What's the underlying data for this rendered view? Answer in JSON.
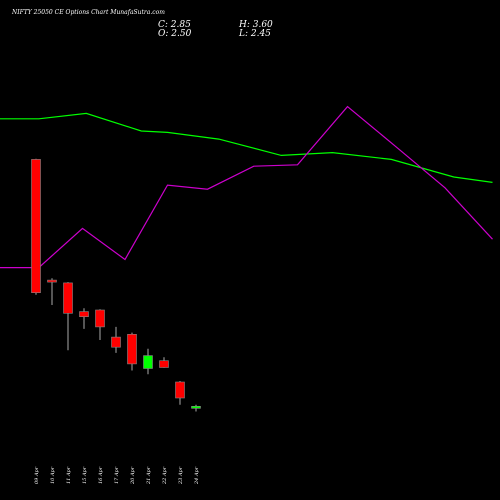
{
  "chart_data": {
    "type": "candlestick",
    "title": "NIFTY 25050 CE Options Chart MunafaSutra.com",
    "ohlc_readout": {
      "close_label": "C: 2.85",
      "open_label": "O: 2.50",
      "high_label": "H: 3.60",
      "low_label": "L: 2.45"
    },
    "categories": [
      "09 Apr",
      "10 Apr",
      "11 Apr",
      "15 Apr",
      "16 Apr",
      "17 Apr",
      "20 Apr",
      "21 Apr",
      "22 Apr",
      "23 Apr",
      "24 Apr"
    ],
    "candles": [
      {
        "date": "09 Apr",
        "open": 100.0,
        "high": 100.5,
        "low": 0.0,
        "close": 1.5,
        "color": "#ff0000"
      },
      {
        "date": "10 Apr",
        "open": 10.8,
        "high": 12.2,
        "low": -7.6,
        "close": 9.5,
        "color": "#ff0000"
      },
      {
        "date": "11 Apr",
        "open": 8.7,
        "high": 9.3,
        "low": -41.0,
        "close": -13.8,
        "color": "#ff0000"
      },
      {
        "date": "15 Apr",
        "open": -12.5,
        "high": -10.0,
        "low": -25.3,
        "close": -16.3,
        "color": "#ff0000"
      },
      {
        "date": "16 Apr",
        "open": -11.3,
        "high": -10.8,
        "low": -33.5,
        "close": -23.8,
        "color": "#ff0000"
      },
      {
        "date": "17 Apr",
        "open": -31.3,
        "high": -23.8,
        "low": -43.0,
        "close": -38.8,
        "color": "#ff0000"
      },
      {
        "date": "20 Apr",
        "open": -29.3,
        "high": -28.0,
        "low": -56.0,
        "close": -51.2,
        "color": "#ff0000"
      },
      {
        "date": "21 Apr",
        "open": -54.5,
        "high": -40.0,
        "low": -58.8,
        "close": -45.0,
        "color": "#00ff00"
      },
      {
        "date": "22 Apr",
        "open": -48.8,
        "high": -46.3,
        "low": -54.0,
        "close": -53.8,
        "color": "#ff0000"
      },
      {
        "date": "23 Apr",
        "open": -64.5,
        "high": -63.8,
        "low": -81.3,
        "close": -76.3,
        "color": "#ff0000"
      },
      {
        "date": "24 Apr",
        "open": -83.8,
        "high": -81.3,
        "low": -86.3,
        "close": -82.5,
        "color": "#00ff00"
      }
    ],
    "series": [
      {
        "color": "#00ff00",
        "x": [
          0,
          3.1,
          6.9,
          11.3,
          13.4,
          17.5,
          22.5,
          26.6,
          31.3,
          36.3,
          39.4
        ],
        "values": [
          130,
          130,
          134,
          121,
          120,
          115,
          103,
          105,
          100,
          87,
          83
        ]
      },
      {
        "color": "#cc00cc",
        "x": [
          0,
          3.1,
          6.6,
          10.0,
          13.4,
          16.6,
          20.3,
          23.8,
          27.8,
          31.6,
          35.6,
          39.4
        ],
        "values": [
          20,
          20,
          49,
          26,
          81,
          78,
          95,
          96,
          139,
          110,
          79,
          41
        ]
      }
    ],
    "ylim": [
      -100,
      240
    ]
  }
}
